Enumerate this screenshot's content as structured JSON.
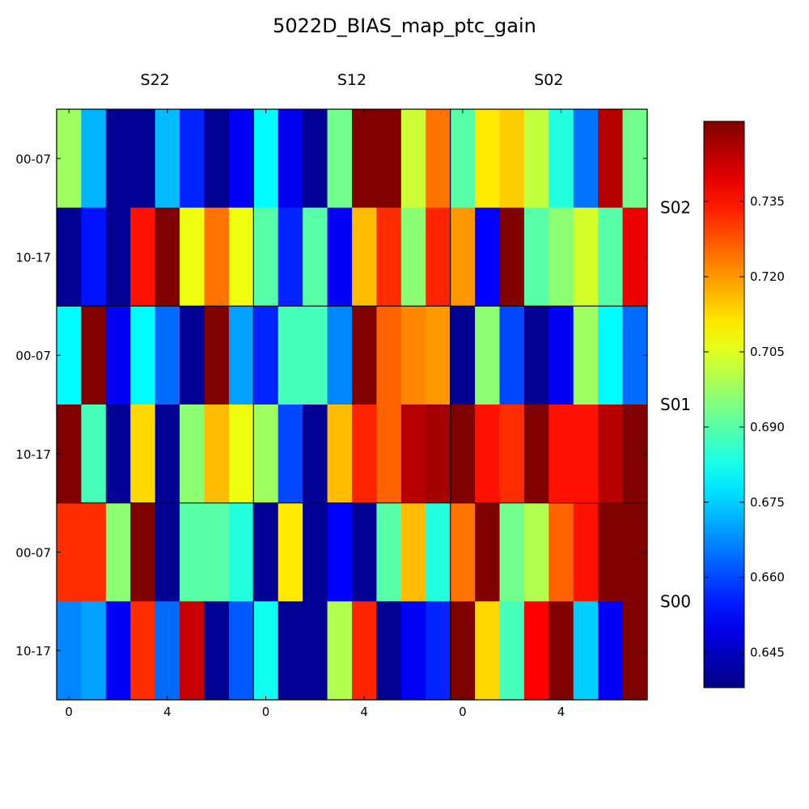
{
  "chart_data": {
    "type": "heatmap",
    "title": "5022D_BIAS_map_ptc_gain",
    "colormap": "jet",
    "vmin": 0.638,
    "vmax": 0.751,
    "colorbar_ticks": [
      "0.645",
      "0.660",
      "0.675",
      "0.690",
      "0.705",
      "0.720",
      "0.735"
    ],
    "column_groups": [
      "S22",
      "S12",
      "S02"
    ],
    "row_groups": [
      "S02",
      "S01",
      "S00"
    ],
    "row_labels": [
      "00-07",
      "10-17"
    ],
    "x_tick_labels": [
      "0",
      "4"
    ],
    "cells_per_row": 24,
    "values": [
      [
        0.698,
        0.672,
        0.64,
        0.64,
        0.673,
        0.656,
        0.64,
        0.651,
        0.68,
        0.65,
        0.64,
        0.693,
        0.751,
        0.751,
        0.703,
        0.724,
        0.69,
        0.711,
        0.714,
        0.702,
        0.684,
        0.665,
        0.745,
        0.693
      ],
      [
        0.64,
        0.654,
        0.64,
        0.735,
        0.751,
        0.707,
        0.724,
        0.707,
        0.69,
        0.656,
        0.69,
        0.651,
        0.716,
        0.732,
        0.696,
        0.733,
        0.72,
        0.652,
        0.751,
        0.69,
        0.696,
        0.704,
        0.69,
        0.739
      ],
      [
        0.68,
        0.751,
        0.651,
        0.68,
        0.664,
        0.64,
        0.751,
        0.67,
        0.656,
        0.688,
        0.688,
        0.667,
        0.751,
        0.726,
        0.722,
        0.72,
        0.64,
        0.696,
        0.66,
        0.64,
        0.651,
        0.698,
        0.68,
        0.664
      ],
      [
        0.751,
        0.688,
        0.64,
        0.713,
        0.64,
        0.696,
        0.716,
        0.707,
        0.698,
        0.66,
        0.64,
        0.716,
        0.733,
        0.726,
        0.745,
        0.747,
        0.751,
        0.735,
        0.732,
        0.751,
        0.735,
        0.735,
        0.745,
        0.751
      ],
      [
        0.732,
        0.732,
        0.696,
        0.751,
        0.64,
        0.69,
        0.69,
        0.684,
        0.64,
        0.711,
        0.64,
        0.652,
        0.64,
        0.69,
        0.716,
        0.684,
        0.724,
        0.751,
        0.693,
        0.7,
        0.726,
        0.735,
        0.751,
        0.751
      ],
      [
        0.667,
        0.67,
        0.651,
        0.732,
        0.664,
        0.743,
        0.64,
        0.662,
        0.682,
        0.64,
        0.64,
        0.7,
        0.733,
        0.64,
        0.651,
        0.656,
        0.751,
        0.713,
        0.688,
        0.737,
        0.751,
        0.675,
        0.651,
        0.751
      ]
    ]
  }
}
